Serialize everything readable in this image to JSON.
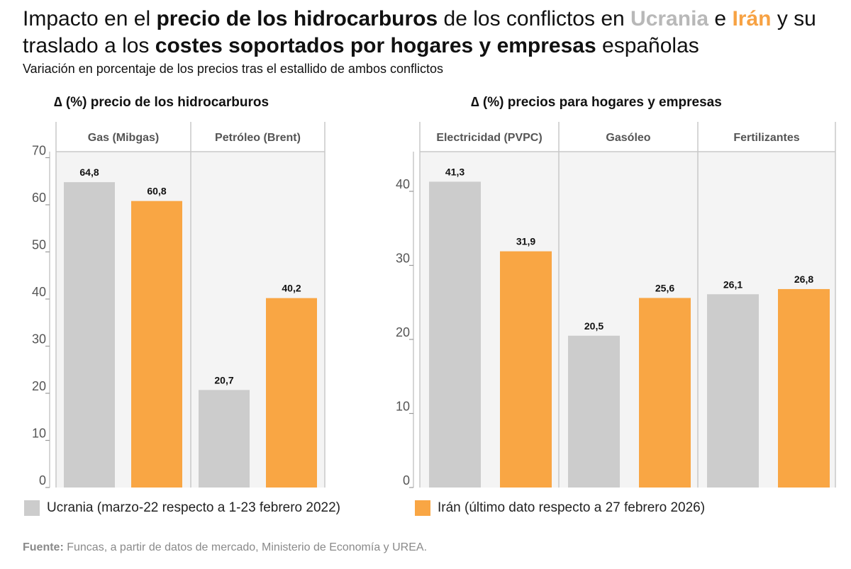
{
  "title": {
    "p1": "Impacto en el ",
    "b1": "precio de los hidrocarburos",
    "p2": " de los conflictos en ",
    "ukr": "Ucrania",
    "p3": " e ",
    "iran": "Irán",
    "p4": " y su traslado a los ",
    "b2": "costes soportados por hogares y empresas",
    "p5": " españolas"
  },
  "subtitle": "Variación en porcentaje de los precios tras el estallido de ambos conflictos",
  "colors": {
    "ukraine": "#cccccc",
    "iran": "#f9a644",
    "panel_bg": "#f4f4f4",
    "divider": "#c8c8c8"
  },
  "chart_data": [
    {
      "type": "bar",
      "title": "∆ (%) precio de los hidrocarburos",
      "categories": [
        "Gas (Mibgas)",
        "Petróleo (Brent)"
      ],
      "series": [
        {
          "name": "Ucrania",
          "values": [
            64.8,
            20.7
          ],
          "labels": [
            "64,8",
            "20,7"
          ]
        },
        {
          "name": "Irán",
          "values": [
            60.8,
            40.2
          ],
          "labels": [
            "60,8",
            "40,2"
          ]
        }
      ],
      "ylim": [
        0,
        70
      ],
      "yticks": [
        0,
        10,
        20,
        30,
        40,
        50,
        60,
        70
      ]
    },
    {
      "type": "bar",
      "title": "∆ (%) precios para hogares y empresas",
      "categories": [
        "Electricidad (PVPC)",
        "Gasóleo",
        "Fertilizantes"
      ],
      "series": [
        {
          "name": "Ucrania",
          "values": [
            41.3,
            20.5,
            26.1
          ],
          "labels": [
            "41,3",
            "20,5",
            "26,1"
          ]
        },
        {
          "name": "Irán",
          "values": [
            31.9,
            25.6,
            26.8
          ],
          "labels": [
            "31,9",
            "25,6",
            "26,8"
          ]
        }
      ],
      "ylim": [
        0,
        45
      ],
      "yticks": [
        0,
        10,
        20,
        30,
        40
      ]
    }
  ],
  "legend": [
    {
      "label": "Ucrania (marzo-22 respecto a 1-23 febrero 2022)"
    },
    {
      "label": "Irán (último dato respecto a 27 febrero 2026)"
    }
  ],
  "source": {
    "label": "Fuente:",
    "text": " Funcas, a partir de datos de mercado, Ministerio de Economía y UREA."
  }
}
